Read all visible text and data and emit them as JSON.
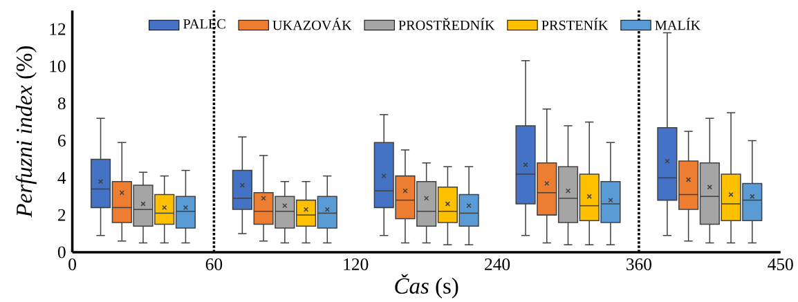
{
  "chart_data": {
    "type": "box",
    "xlabel": "*Čas* (s)",
    "ylabel": "*Perfuzni index* (%)",
    "categories": [
      null,
      null,
      null,
      null,
      null
    ],
    "annotations": [
      "0",
      "60",
      "120",
      "240",
      "360",
      "450"
    ],
    "ylim": [
      0,
      13
    ],
    "yticks": [
      0,
      2,
      4,
      6,
      8,
      10,
      12
    ],
    "legend": "top",
    "series": [
      {
        "name": "PALEC",
        "color": "#4472c4",
        "boxes": [
          {
            "low": 0.9,
            "q1": 2.4,
            "median": 3.4,
            "q3": 5.0,
            "high": 7.2,
            "mean": 3.8
          },
          {
            "low": 1.0,
            "q1": 2.3,
            "median": 2.9,
            "q3": 4.4,
            "high": 6.2,
            "mean": 3.6
          },
          {
            "low": 0.9,
            "q1": 2.4,
            "median": 3.3,
            "q3": 5.9,
            "high": 7.4,
            "mean": 4.1
          },
          {
            "low": 0.9,
            "q1": 2.6,
            "median": 4.2,
            "q3": 6.8,
            "high": 10.3,
            "mean": 4.7
          },
          {
            "low": 0.9,
            "q1": 2.8,
            "median": 4.0,
            "q3": 6.7,
            "high": 11.8,
            "mean": 4.9
          }
        ]
      },
      {
        "name": "UKAZOVÁK",
        "color": "#ed7d31",
        "boxes": [
          {
            "low": 0.6,
            "q1": 1.6,
            "median": 2.4,
            "q3": 3.8,
            "high": 5.9,
            "mean": 3.2
          },
          {
            "low": 0.6,
            "q1": 1.5,
            "median": 2.2,
            "q3": 3.2,
            "high": 5.2,
            "mean": 2.9
          },
          {
            "low": 0.5,
            "q1": 1.8,
            "median": 2.8,
            "q3": 4.1,
            "high": 5.5,
            "mean": 3.3
          },
          {
            "low": 0.5,
            "q1": 2.0,
            "median": 3.2,
            "q3": 4.8,
            "high": 7.7,
            "mean": 3.7
          },
          {
            "low": 0.6,
            "q1": 2.3,
            "median": 3.1,
            "q3": 4.9,
            "high": 6.5,
            "mean": 3.9
          }
        ]
      },
      {
        "name": "PROSTŘEDNÍK",
        "color": "#a5a5a5",
        "boxes": [
          {
            "low": 0.5,
            "q1": 1.4,
            "median": 2.3,
            "q3": 3.6,
            "high": 4.3,
            "mean": 2.6
          },
          {
            "low": 0.5,
            "q1": 1.3,
            "median": 2.2,
            "q3": 3.0,
            "high": 3.8,
            "mean": 2.5
          },
          {
            "low": 0.5,
            "q1": 1.4,
            "median": 2.2,
            "q3": 3.8,
            "high": 4.8,
            "mean": 2.9
          },
          {
            "low": 0.4,
            "q1": 1.6,
            "median": 2.9,
            "q3": 4.6,
            "high": 6.8,
            "mean": 3.3
          },
          {
            "low": 0.5,
            "q1": 1.5,
            "median": 3.0,
            "q3": 4.8,
            "high": 7.2,
            "mean": 3.5
          }
        ]
      },
      {
        "name": "PRSTENÍK",
        "color": "#ffc000",
        "boxes": [
          {
            "low": 0.5,
            "q1": 1.5,
            "median": 2.1,
            "q3": 3.1,
            "high": 4.1,
            "mean": 2.4
          },
          {
            "low": 0.5,
            "q1": 1.4,
            "median": 2.0,
            "q3": 2.8,
            "high": 3.8,
            "mean": 2.3
          },
          {
            "low": 0.4,
            "q1": 1.6,
            "median": 2.2,
            "q3": 3.5,
            "high": 4.6,
            "mean": 2.6
          },
          {
            "low": 0.4,
            "q1": 1.7,
            "median": 2.5,
            "q3": 4.2,
            "high": 7.0,
            "mean": 3.0
          },
          {
            "low": 0.5,
            "q1": 1.7,
            "median": 2.6,
            "q3": 4.2,
            "high": 7.5,
            "mean": 3.1
          }
        ]
      },
      {
        "name": "MALÍK",
        "color": "#5b9bd5",
        "boxes": [
          {
            "low": 0.5,
            "q1": 1.3,
            "median": 2.2,
            "q3": 3.0,
            "high": 4.4,
            "mean": 2.4
          },
          {
            "low": 0.5,
            "q1": 1.3,
            "median": 2.1,
            "q3": 3.0,
            "high": 4.1,
            "mean": 2.3
          },
          {
            "low": 0.4,
            "q1": 1.4,
            "median": 2.1,
            "q3": 3.1,
            "high": 4.6,
            "mean": 2.5
          },
          {
            "low": 0.4,
            "q1": 1.6,
            "median": 2.6,
            "q3": 3.8,
            "high": 5.9,
            "mean": 2.8
          },
          {
            "low": 0.5,
            "q1": 1.7,
            "median": 2.8,
            "q3": 3.7,
            "high": 6.0,
            "mean": 3.0
          }
        ]
      }
    ]
  }
}
